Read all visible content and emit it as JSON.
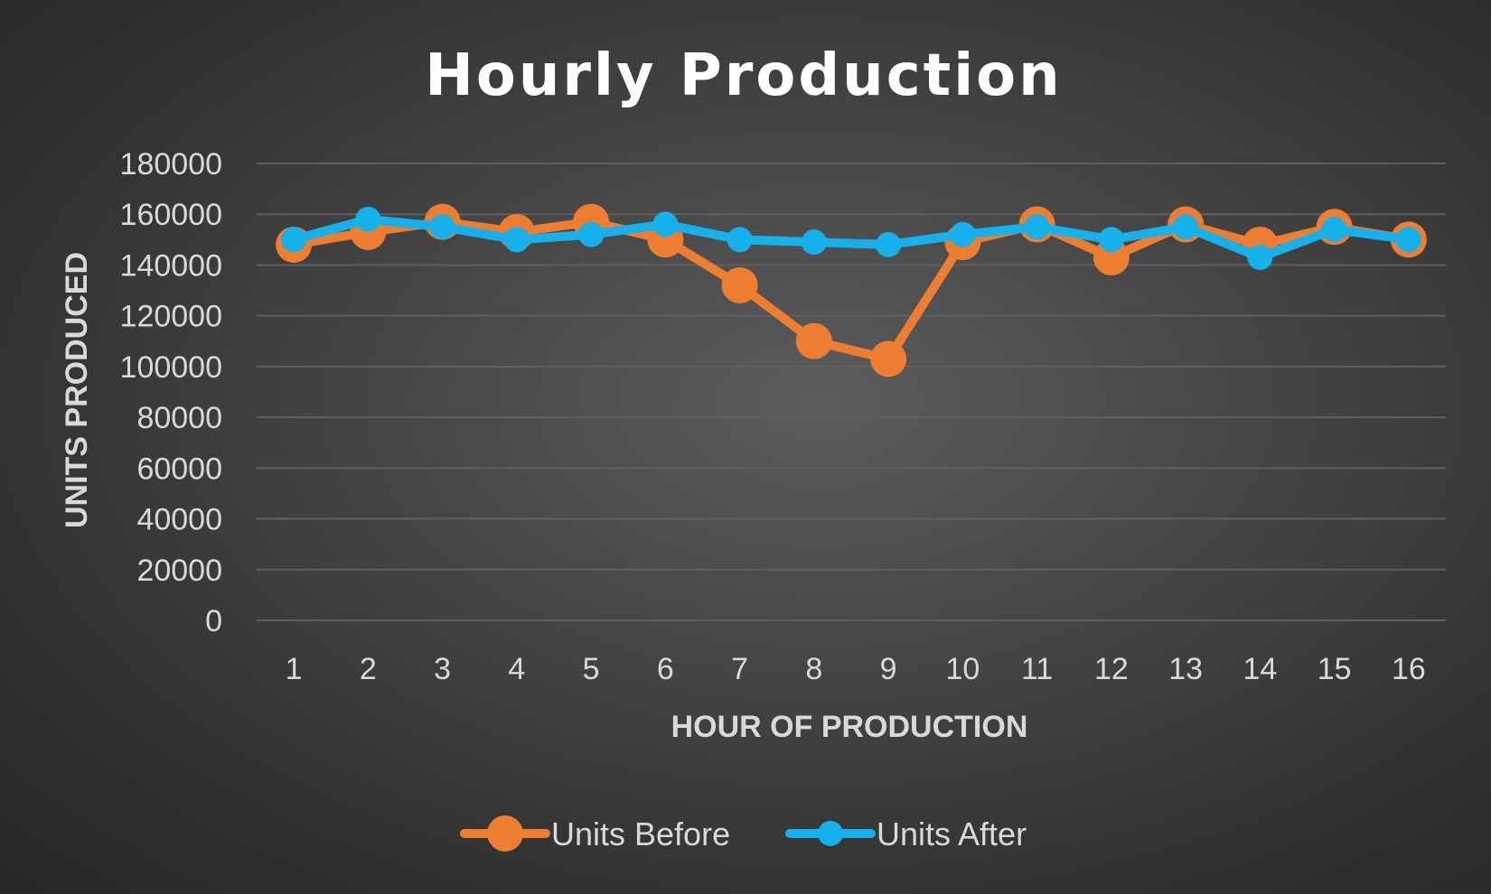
{
  "chart_data": {
    "type": "line",
    "title": "Hourly Production",
    "xlabel": "HOUR OF PRODUCTION",
    "ylabel": "UNITS PRODUCED",
    "categories": [
      "1",
      "2",
      "3",
      "4",
      "5",
      "6",
      "7",
      "8",
      "9",
      "10",
      "11",
      "12",
      "13",
      "14",
      "15",
      "16"
    ],
    "ylim": [
      0,
      180000
    ],
    "yticks": [
      "0",
      "20000",
      "40000",
      "60000",
      "80000",
      "100000",
      "120000",
      "140000",
      "160000",
      "180000"
    ],
    "grid": true,
    "legend_position": "bottom",
    "series": [
      {
        "name": "Units Before",
        "color": "#ed7d31",
        "values": [
          148000,
          153000,
          157000,
          153000,
          157000,
          150000,
          132000,
          110000,
          103000,
          149000,
          156000,
          143000,
          156000,
          148000,
          155000,
          150000
        ]
      },
      {
        "name": "Units After",
        "color": "#16b1ea",
        "values": [
          150000,
          158000,
          155000,
          150000,
          152000,
          156000,
          150000,
          149000,
          148000,
          152000,
          155000,
          150000,
          155000,
          143000,
          154000,
          150000
        ]
      }
    ]
  }
}
